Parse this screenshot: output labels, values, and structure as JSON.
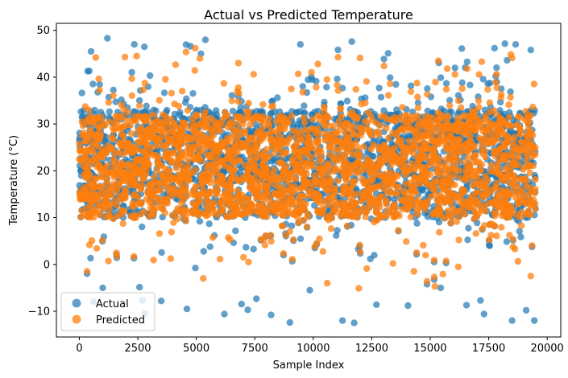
{
  "chart_data": {
    "type": "scatter",
    "title": "Actual vs Predicted Temperature",
    "xlabel": "Sample Index",
    "ylabel": "Temperature (°C)",
    "xlim": [
      -980,
      20580
    ],
    "ylim": [
      -15.5,
      51.5
    ],
    "x_ticks": [
      0,
      2500,
      5000,
      7500,
      10000,
      12500,
      15000,
      17500,
      20000
    ],
    "y_ticks": [
      -10,
      0,
      10,
      20,
      30,
      40,
      50
    ],
    "x_tick_labels": [
      "0",
      "2500",
      "5000",
      "7500",
      "10000",
      "12500",
      "15000",
      "17500",
      "20000"
    ],
    "y_tick_labels": [
      "−10",
      "0",
      "10",
      "20",
      "30",
      "40",
      "50"
    ],
    "grid": false,
    "legend_position": "lower-left",
    "series": [
      {
        "name": "Actual",
        "color": "#1f77b4",
        "opacity": 0.7,
        "marker": "circle",
        "x_range": [
          0,
          19500
        ],
        "core_range": [
          10,
          33
        ],
        "spread_range": [
          -12.5,
          48.5
        ],
        "approx_count": 19500,
        "sample_points": [
          [
            1200,
            48.3
          ],
          [
            2350,
            47.0
          ],
          [
            4750,
            46.6
          ],
          [
            11650,
            47.6
          ],
          [
            18650,
            47.0
          ],
          [
            9450,
            47.0
          ],
          [
            500,
            45.5
          ],
          [
            5200,
            45.0
          ],
          [
            13200,
            45.1
          ],
          [
            16350,
            46.1
          ],
          [
            17750,
            46.2
          ],
          [
            19300,
            45.8
          ],
          [
            2700,
            -7.7
          ],
          [
            2800,
            -10.5
          ],
          [
            6200,
            -10.6
          ],
          [
            7200,
            -9.7
          ],
          [
            4600,
            -9.5
          ],
          [
            8200,
            -10.8
          ],
          [
            9000,
            -12.4
          ],
          [
            11250,
            -12.0
          ],
          [
            11750,
            -12.5
          ],
          [
            18500,
            -12.0
          ],
          [
            19450,
            -12.0
          ],
          [
            600,
            -8.0
          ],
          [
            1000,
            -5.0
          ],
          [
            3500,
            -7.8
          ],
          [
            12700,
            -8.6
          ],
          [
            14050,
            -8.8
          ],
          [
            16550,
            -8.7
          ],
          [
            17150,
            -7.7
          ],
          [
            17300,
            -10.6
          ],
          [
            19100,
            -9.8
          ],
          [
            9850,
            -5.5
          ],
          [
            15450,
            -5.0
          ]
        ]
      },
      {
        "name": "Predicted",
        "color": "#ff7f0e",
        "opacity": 0.75,
        "marker": "circle",
        "x_range": [
          0,
          19500
        ],
        "core_range": [
          10,
          32
        ],
        "spread_range": [
          -5,
          46
        ],
        "approx_count": 19500,
        "sample_points": [
          [
            4950,
            46.2
          ],
          [
            1950,
            44.3
          ],
          [
            2450,
            44.5
          ],
          [
            700,
            44.2
          ],
          [
            12000,
            44.1
          ],
          [
            18500,
            44.1
          ],
          [
            6800,
            43.0
          ],
          [
            15350,
            43.5
          ],
          [
            17200,
            43.3
          ],
          [
            10200,
            42.8
          ],
          [
            10600,
            -4.0
          ],
          [
            11950,
            -5.1
          ],
          [
            15200,
            -4.7
          ],
          [
            5300,
            -3.0
          ],
          [
            19300,
            -2.5
          ],
          [
            14300,
            -1.5
          ]
        ]
      }
    ]
  }
}
